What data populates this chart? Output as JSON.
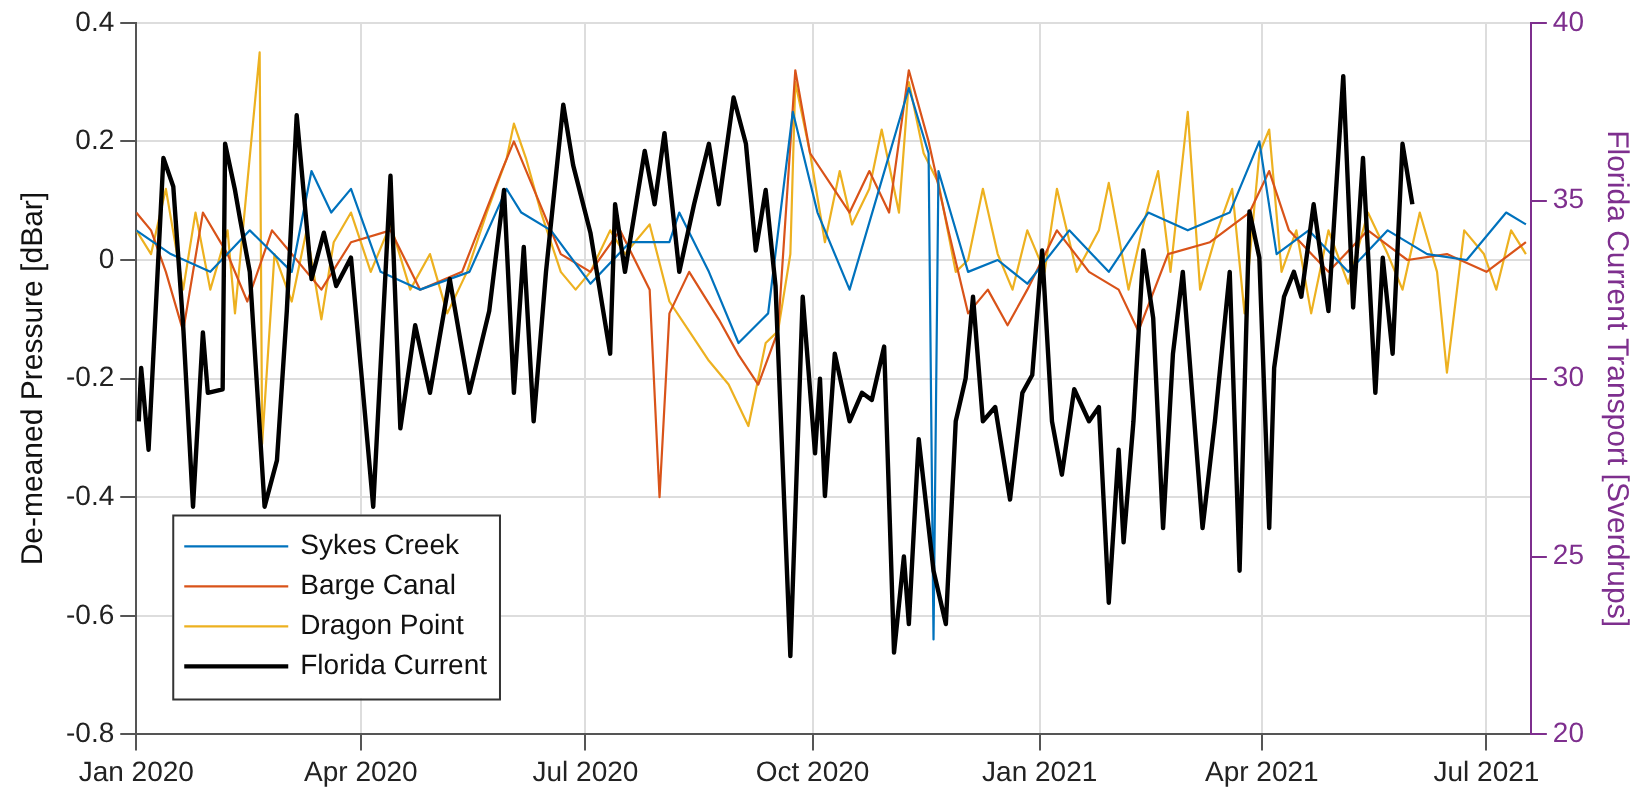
{
  "chart_data": {
    "type": "line",
    "xlabel": null,
    "ylabel": "De-meaned Pressure [dBar]",
    "y2label": "Florida Current Transport [Sverdrups]",
    "xlim": [
      "2020-01-01",
      "2021-07-19"
    ],
    "xticks": [
      {
        "value": "2020-01-01",
        "label": "Jan 2020"
      },
      {
        "value": "2020-04-01",
        "label": "Apr 2020"
      },
      {
        "value": "2020-07-01",
        "label": "Jul 2020"
      },
      {
        "value": "2020-10-01",
        "label": "Oct 2020"
      },
      {
        "value": "2021-01-01",
        "label": "Jan 2021"
      },
      {
        "value": "2021-04-01",
        "label": "Apr 2021"
      },
      {
        "value": "2021-07-01",
        "label": "Jul 2021"
      }
    ],
    "ylim": [
      -0.8,
      0.4
    ],
    "yticks": [
      -0.8,
      -0.6,
      -0.4,
      -0.2,
      0,
      0.2,
      0.4
    ],
    "y2lim": [
      20,
      40
    ],
    "y2ticks": [
      20,
      25,
      30,
      35,
      40
    ],
    "grid": true,
    "legend": "bottom left",
    "marker": "none",
    "line_style": "solid",
    "series": [
      {
        "name": "Sykes Creek",
        "color": "#0072bd",
        "x": [
          "2020-01-01",
          "2020-01-15",
          "2020-01-31",
          "2020-02-16",
          "2020-03-04",
          "2020-03-12",
          "2020-03-20",
          "2020-03-28",
          "2020-04-09",
          "2020-04-25",
          "2020-05-15",
          "2020-05-30",
          "2020-06-05",
          "2020-06-17",
          "2020-07-03",
          "2020-07-19",
          "2020-08-04",
          "2020-08-08",
          "2020-08-20",
          "2020-09-01",
          "2020-09-13",
          "2020-09-23",
          "2020-10-03",
          "2020-10-16",
          "2020-10-28",
          "2020-11-09",
          "2020-11-17",
          "2020-11-19",
          "2020-11-21",
          "2020-12-03",
          "2020-12-15",
          "2020-12-27",
          "2021-01-13",
          "2021-01-29",
          "2021-02-14",
          "2021-03-02",
          "2021-03-19",
          "2021-03-31",
          "2021-04-07",
          "2021-04-20",
          "2021-05-06",
          "2021-05-22",
          "2021-06-07",
          "2021-06-23",
          "2021-07-09",
          "2021-07-17"
        ],
        "values": [
          0.05,
          0.01,
          -0.02,
          0.05,
          -0.02,
          0.15,
          0.08,
          0.12,
          -0.02,
          -0.05,
          -0.02,
          0.12,
          0.08,
          0.05,
          -0.04,
          0.03,
          0.03,
          0.08,
          -0.02,
          -0.14,
          -0.09,
          0.25,
          0.08,
          -0.05,
          0.12,
          0.29,
          0.18,
          -0.64,
          0.15,
          -0.02,
          0.0,
          -0.04,
          0.05,
          -0.02,
          0.08,
          0.05,
          0.08,
          0.2,
          0.01,
          0.05,
          -0.02,
          0.05,
          0.01,
          0.0,
          0.08,
          0.06
        ]
      },
      {
        "name": "Barge Canal",
        "color": "#d95319",
        "x": [
          "2020-01-01",
          "2020-01-07",
          "2020-01-13",
          "2020-01-20",
          "2020-01-28",
          "2020-02-07",
          "2020-02-15",
          "2020-02-25",
          "2020-03-04",
          "2020-03-16",
          "2020-03-28",
          "2020-04-13",
          "2020-04-25",
          "2020-05-12",
          "2020-05-28",
          "2020-06-02",
          "2020-06-09",
          "2020-06-21",
          "2020-07-03",
          "2020-07-15",
          "2020-07-27",
          "2020-07-31",
          "2020-08-04",
          "2020-08-12",
          "2020-08-24",
          "2020-09-01",
          "2020-09-09",
          "2020-09-17",
          "2020-09-24",
          "2020-09-30",
          "2020-10-08",
          "2020-10-16",
          "2020-10-24",
          "2020-11-01",
          "2020-11-09",
          "2020-11-17",
          "2020-11-25",
          "2020-12-03",
          "2020-12-11",
          "2020-12-19",
          "2020-12-27",
          "2021-01-08",
          "2021-01-21",
          "2021-02-02",
          "2021-02-10",
          "2021-02-22",
          "2021-03-11",
          "2021-03-27",
          "2021-04-04",
          "2021-04-12",
          "2021-04-28",
          "2021-05-14",
          "2021-05-30",
          "2021-06-15",
          "2021-07-01",
          "2021-07-17"
        ],
        "values": [
          0.08,
          0.05,
          -0.02,
          -0.12,
          0.08,
          0.01,
          -0.07,
          0.05,
          0.01,
          -0.05,
          0.03,
          0.05,
          -0.05,
          -0.02,
          0.15,
          0.2,
          0.13,
          0.01,
          -0.02,
          0.05,
          -0.05,
          -0.4,
          -0.09,
          -0.02,
          -0.1,
          -0.16,
          -0.21,
          -0.12,
          0.32,
          0.18,
          0.13,
          0.08,
          0.15,
          0.08,
          0.32,
          0.2,
          0.05,
          -0.09,
          -0.05,
          -0.11,
          -0.05,
          0.05,
          -0.02,
          -0.05,
          -0.12,
          0.01,
          0.03,
          0.08,
          0.15,
          0.05,
          -0.02,
          0.05,
          0.0,
          0.01,
          -0.02,
          0.03
        ]
      },
      {
        "name": "Dragon Point",
        "color": "#edb120",
        "x": [
          "2020-01-01",
          "2020-01-07",
          "2020-01-13",
          "2020-01-20",
          "2020-01-25",
          "2020-01-31",
          "2020-02-07",
          "2020-02-10",
          "2020-02-15",
          "2020-02-20",
          "2020-02-21",
          "2020-02-26",
          "2020-03-04",
          "2020-03-10",
          "2020-03-16",
          "2020-03-21",
          "2020-03-28",
          "2020-04-05",
          "2020-04-13",
          "2020-04-21",
          "2020-04-29",
          "2020-05-06",
          "2020-05-14",
          "2020-05-22",
          "2020-05-30",
          "2020-06-02",
          "2020-06-07",
          "2020-06-13",
          "2020-06-21",
          "2020-06-27",
          "2020-07-03",
          "2020-07-11",
          "2020-07-17",
          "2020-07-27",
          "2020-08-04",
          "2020-08-12",
          "2020-08-20",
          "2020-08-28",
          "2020-09-05",
          "2020-09-12",
          "2020-09-17",
          "2020-09-22",
          "2020-09-24",
          "2020-09-30",
          "2020-10-06",
          "2020-10-12",
          "2020-10-17",
          "2020-10-24",
          "2020-10-29",
          "2020-11-05",
          "2020-11-09",
          "2020-11-15",
          "2020-11-21",
          "2020-11-28",
          "2020-12-03",
          "2020-12-09",
          "2020-12-15",
          "2020-12-21",
          "2020-12-27",
          "2021-01-03",
          "2021-01-08",
          "2021-01-16",
          "2021-01-25",
          "2021-01-29",
          "2021-02-06",
          "2021-02-12",
          "2021-02-18",
          "2021-02-23",
          "2021-03-02",
          "2021-03-07",
          "2021-03-14",
          "2021-03-20",
          "2021-03-25",
          "2021-03-31",
          "2021-04-04",
          "2021-04-09",
          "2021-04-15",
          "2021-04-21",
          "2021-04-28",
          "2021-05-06",
          "2021-05-14",
          "2021-05-22",
          "2021-05-28",
          "2021-06-04",
          "2021-06-11",
          "2021-06-15",
          "2021-06-22",
          "2021-06-30",
          "2021-07-05",
          "2021-07-11",
          "2021-07-17"
        ],
        "values": [
          0.05,
          0.01,
          0.12,
          -0.05,
          0.08,
          -0.05,
          0.05,
          -0.09,
          0.13,
          0.35,
          -0.31,
          0.01,
          -0.07,
          0.05,
          -0.1,
          0.03,
          0.08,
          -0.02,
          0.06,
          -0.05,
          0.01,
          -0.09,
          -0.02,
          0.08,
          0.17,
          0.23,
          0.17,
          0.08,
          -0.02,
          -0.05,
          -0.02,
          0.05,
          0.01,
          0.06,
          -0.07,
          -0.12,
          -0.17,
          -0.21,
          -0.28,
          -0.14,
          -0.12,
          0.01,
          0.3,
          0.18,
          0.03,
          0.15,
          0.06,
          0.12,
          0.22,
          0.08,
          0.3,
          0.18,
          0.13,
          -0.02,
          0.0,
          0.12,
          0.01,
          -0.05,
          0.05,
          -0.02,
          0.12,
          -0.02,
          0.05,
          0.13,
          -0.05,
          0.06,
          0.15,
          -0.02,
          0.25,
          -0.05,
          0.05,
          0.12,
          -0.09,
          0.18,
          0.22,
          -0.02,
          0.05,
          -0.09,
          0.05,
          -0.04,
          0.08,
          0.01,
          -0.05,
          0.08,
          -0.02,
          -0.19,
          0.05,
          0.01,
          -0.05,
          0.05,
          0.01
        ]
      },
      {
        "name": "Florida Current",
        "color": "#000000",
        "axis": "y2",
        "x": [
          "2020-01-02",
          "2020-01-03",
          "2020-01-06",
          "2020-01-12",
          "2020-01-16",
          "2020-01-20",
          "2020-01-24",
          "2020-01-28",
          "2020-01-30",
          "2020-02-05",
          "2020-02-06",
          "2020-02-10",
          "2020-02-12",
          "2020-02-16",
          "2020-02-22",
          "2020-02-27",
          "2020-03-02",
          "2020-03-06",
          "2020-03-12",
          "2020-03-17",
          "2020-03-22",
          "2020-03-28",
          "2020-04-01",
          "2020-04-06",
          "2020-04-11",
          "2020-04-13",
          "2020-04-17",
          "2020-04-23",
          "2020-04-29",
          "2020-05-07",
          "2020-05-15",
          "2020-05-23",
          "2020-05-29",
          "2020-06-02",
          "2020-06-06",
          "2020-06-10",
          "2020-06-15",
          "2020-06-22",
          "2020-06-26",
          "2020-07-03",
          "2020-07-11",
          "2020-07-13",
          "2020-07-17",
          "2020-07-25",
          "2020-07-29",
          "2020-08-02",
          "2020-08-08",
          "2020-08-14",
          "2020-08-20",
          "2020-08-24",
          "2020-08-30",
          "2020-09-04",
          "2020-09-08",
          "2020-09-12",
          "2020-09-16",
          "2020-09-22",
          "2020-09-27",
          "2020-10-02",
          "2020-10-04",
          "2020-10-06",
          "2020-10-10",
          "2020-10-16",
          "2020-10-21",
          "2020-10-25",
          "2020-10-30",
          "2020-11-03",
          "2020-11-07",
          "2020-11-09",
          "2020-11-13",
          "2020-11-19",
          "2020-11-24",
          "2020-11-28",
          "2020-12-02",
          "2020-12-05",
          "2020-12-09",
          "2020-12-14",
          "2020-12-20",
          "2020-12-25",
          "2020-12-29",
          "2021-01-02",
          "2021-01-06",
          "2021-01-10",
          "2021-01-15",
          "2021-01-21",
          "2021-01-25",
          "2021-01-29",
          "2021-02-02",
          "2021-02-04",
          "2021-02-08",
          "2021-02-12",
          "2021-02-16",
          "2021-02-20",
          "2021-02-24",
          "2021-02-28",
          "2021-03-08",
          "2021-03-13",
          "2021-03-19",
          "2021-03-23",
          "2021-03-27",
          "2021-03-31",
          "2021-04-04",
          "2021-04-06",
          "2021-04-10",
          "2021-04-14",
          "2021-04-17",
          "2021-04-22",
          "2021-04-28",
          "2021-05-04",
          "2021-05-08",
          "2021-05-12",
          "2021-05-17",
          "2021-05-20",
          "2021-05-24",
          "2021-05-28",
          "2021-06-01"
        ],
        "values": [
          28.8,
          30.3,
          28.0,
          36.2,
          35.4,
          31.5,
          26.4,
          31.3,
          29.6,
          29.7,
          36.6,
          35.3,
          34.5,
          33.0,
          26.4,
          27.7,
          31.9,
          37.4,
          32.8,
          34.1,
          32.6,
          33.4,
          30.3,
          26.4,
          33.0,
          35.7,
          28.6,
          31.5,
          29.6,
          32.8,
          29.6,
          31.9,
          35.3,
          29.6,
          33.7,
          28.8,
          33.0,
          37.7,
          36.0,
          34.1,
          30.7,
          34.9,
          33.0,
          36.4,
          34.9,
          36.9,
          33.0,
          34.9,
          36.6,
          34.9,
          37.9,
          36.6,
          33.6,
          35.3,
          32.6,
          22.2,
          32.3,
          27.9,
          30.0,
          26.7,
          30.7,
          28.8,
          29.6,
          29.4,
          30.9,
          22.3,
          25.0,
          23.1,
          28.3,
          24.6,
          23.1,
          28.8,
          30.0,
          32.3,
          28.8,
          29.2,
          26.6,
          29.6,
          30.1,
          33.6,
          28.8,
          27.3,
          29.7,
          28.8,
          29.2,
          23.7,
          28.0,
          25.4,
          28.8,
          33.6,
          31.7,
          25.8,
          30.7,
          33.0,
          25.8,
          28.8,
          33.0,
          24.6,
          34.7,
          33.4,
          25.8,
          30.3,
          32.3,
          33.0,
          32.3,
          34.9,
          31.9,
          38.5,
          32.0,
          36.2,
          29.6,
          33.4,
          30.7,
          36.6,
          34.9
        ]
      }
    ]
  }
}
